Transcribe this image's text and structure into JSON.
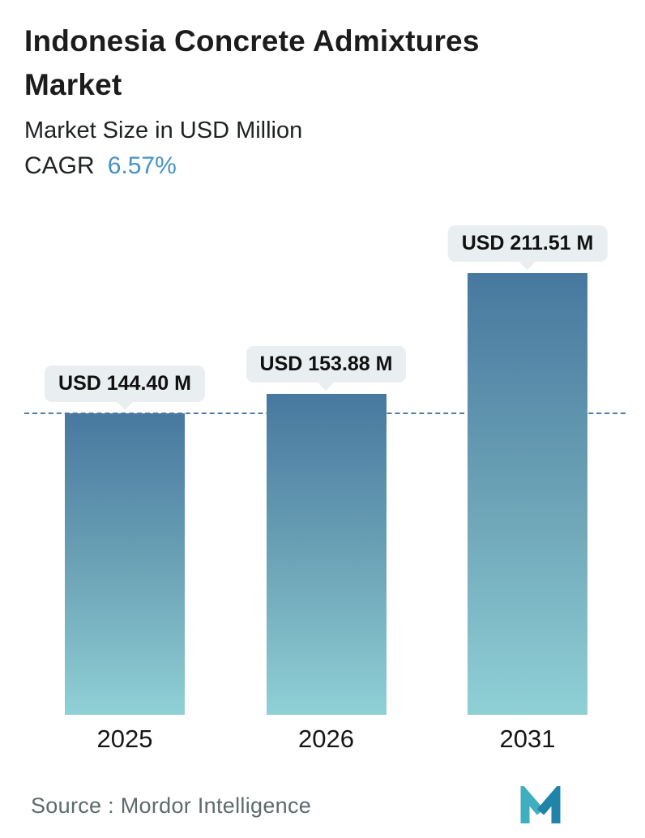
{
  "header": {
    "title": "Indonesia Concrete Admixtures Market",
    "subtitle": "Market Size in USD Million",
    "cagr_label": "CAGR",
    "cagr_value": "6.57%"
  },
  "chart_data": {
    "type": "bar",
    "title": "Indonesia Concrete Admixtures Market",
    "subtitle": "Market Size in USD Million",
    "cagr": "6.57%",
    "categories": [
      "2025",
      "2026",
      "2031"
    ],
    "values": [
      144.4,
      153.88,
      211.51
    ],
    "value_labels": [
      "USD 144.40 M",
      "USD 153.88 M",
      "USD 211.51 M"
    ],
    "unit": "USD Million",
    "ylim": [
      0,
      220
    ],
    "grid": "off",
    "legend": "none",
    "baseline_at_value": 144.4,
    "colors": {
      "bar_gradient_top": "#47789f",
      "bar_gradient_bottom": "#8fd0d6",
      "dashed_line": "#4d7ea8",
      "bubble_bg": "#e9eff1",
      "cagr_value": "#4592c5"
    }
  },
  "footer": {
    "source": "Source :  Mordor Intelligence"
  }
}
